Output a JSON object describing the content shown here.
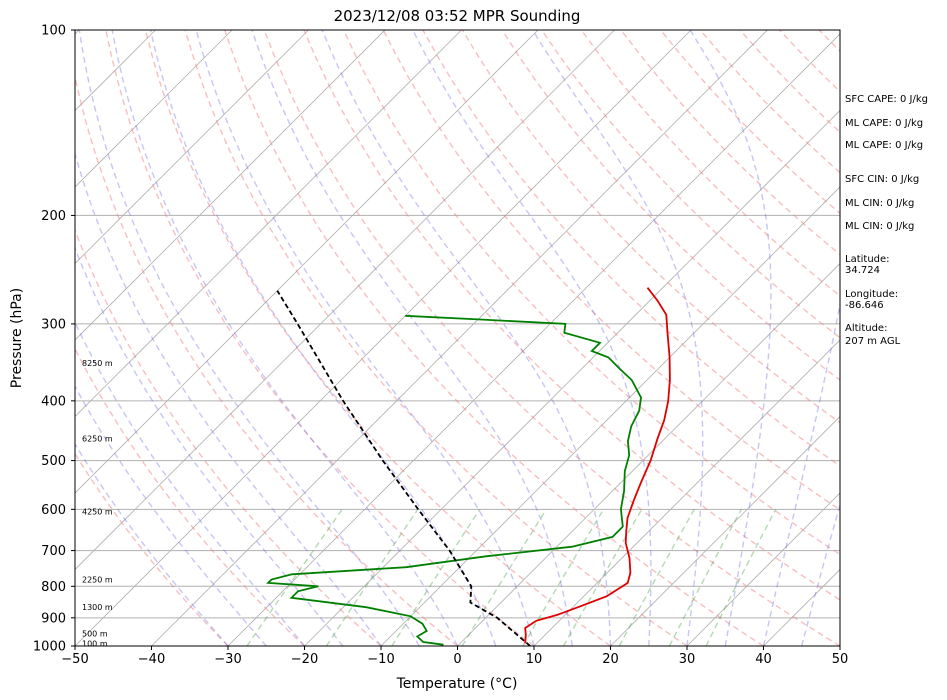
{
  "chart_data": {
    "type": "line",
    "title": "2023/12/08 03:52 MPR Sounding",
    "xlabel": "Temperature (°C)",
    "ylabel": "Pressure (hPa)",
    "xlim": [
      -50,
      50
    ],
    "ylim": [
      1000,
      100
    ],
    "y_scale": "log",
    "skew": true,
    "grid": true,
    "x_ticks": [
      -50,
      -40,
      -30,
      -20,
      -10,
      0,
      10,
      20,
      30,
      40,
      50
    ],
    "y_ticks": [
      1000,
      900,
      800,
      700,
      600,
      500,
      400,
      300,
      200,
      100
    ],
    "series": [
      {
        "key": "temperature",
        "color": "#e00000",
        "points": [
          {
            "p": 990,
            "t": 8.5
          },
          {
            "p": 960,
            "t": 7.5
          },
          {
            "p": 935,
            "t": 6.5
          },
          {
            "p": 910,
            "t": 7.0
          },
          {
            "p": 890,
            "t": 9.0
          },
          {
            "p": 860,
            "t": 11.0
          },
          {
            "p": 830,
            "t": 13.0
          },
          {
            "p": 790,
            "t": 14.0
          },
          {
            "p": 760,
            "t": 13.0
          },
          {
            "p": 720,
            "t": 11.0
          },
          {
            "p": 680,
            "t": 8.5
          },
          {
            "p": 650,
            "t": 7.0
          },
          {
            "p": 620,
            "t": 5.5
          },
          {
            "p": 580,
            "t": 4.0
          },
          {
            "p": 540,
            "t": 2.5
          },
          {
            "p": 500,
            "t": 1.0
          },
          {
            "p": 460,
            "t": -1.0
          },
          {
            "p": 430,
            "t": -2.5
          },
          {
            "p": 400,
            "t": -4.5
          },
          {
            "p": 370,
            "t": -7.0
          },
          {
            "p": 340,
            "t": -10.0
          },
          {
            "p": 310,
            "t": -13.5
          },
          {
            "p": 290,
            "t": -16.0
          },
          {
            "p": 275,
            "t": -19.0
          },
          {
            "p": 262,
            "t": -22.0
          }
        ]
      },
      {
        "key": "dewpoint",
        "color": "#008000",
        "points": [
          {
            "p": 995,
            "t": -2.0
          },
          {
            "p": 985,
            "t": -5.0
          },
          {
            "p": 965,
            "t": -6.5
          },
          {
            "p": 945,
            "t": -6.0
          },
          {
            "p": 920,
            "t": -7.5
          },
          {
            "p": 895,
            "t": -10.0
          },
          {
            "p": 865,
            "t": -17.0
          },
          {
            "p": 835,
            "t": -28.0
          },
          {
            "p": 815,
            "t": -28.0
          },
          {
            "p": 800,
            "t": -26.0
          },
          {
            "p": 790,
            "t": -33.0
          },
          {
            "p": 780,
            "t": -33.0
          },
          {
            "p": 765,
            "t": -31.0
          },
          {
            "p": 745,
            "t": -17.0
          },
          {
            "p": 715,
            "t": -8.0
          },
          {
            "p": 690,
            "t": 2.0
          },
          {
            "p": 665,
            "t": 6.0
          },
          {
            "p": 640,
            "t": 6.0
          },
          {
            "p": 600,
            "t": 3.5
          },
          {
            "p": 560,
            "t": 1.5
          },
          {
            "p": 520,
            "t": -1.0
          },
          {
            "p": 490,
            "t": -2.5
          },
          {
            "p": 465,
            "t": -4.5
          },
          {
            "p": 440,
            "t": -6.0
          },
          {
            "p": 415,
            "t": -7.0
          },
          {
            "p": 395,
            "t": -8.5
          },
          {
            "p": 370,
            "t": -12.0
          },
          {
            "p": 355,
            "t": -15.0
          },
          {
            "p": 340,
            "t": -18.0
          },
          {
            "p": 332,
            "t": -21.0
          },
          {
            "p": 322,
            "t": -21.0
          },
          {
            "p": 310,
            "t": -27.0
          },
          {
            "p": 300,
            "t": -28.0
          },
          {
            "p": 295,
            "t": -40.0
          },
          {
            "p": 291,
            "t": -50.0
          }
        ]
      },
      {
        "key": "parcel",
        "color": "#000000",
        "dashed": true,
        "points": [
          {
            "p": 1000,
            "t": 9.5
          },
          {
            "p": 900,
            "t": 1.5
          },
          {
            "p": 850,
            "t": -4.0
          },
          {
            "p": 800,
            "t": -6.0
          },
          {
            "p": 700,
            "t": -13.5
          },
          {
            "p": 600,
            "t": -23.0
          },
          {
            "p": 500,
            "t": -34.0
          },
          {
            "p": 400,
            "t": -47.0
          },
          {
            "p": 300,
            "t": -63.0
          },
          {
            "p": 265,
            "t": -70.0
          }
        ]
      }
    ],
    "height_labels": [
      {
        "p": 990,
        "text": "100 m"
      },
      {
        "p": 955,
        "text": "500 m"
      },
      {
        "p": 865,
        "text": "1300 m"
      },
      {
        "p": 780,
        "text": "2250 m"
      },
      {
        "p": 605,
        "text": "4250 m"
      },
      {
        "p": 460,
        "text": "6250 m"
      },
      {
        "p": 347,
        "text": "8250 m"
      }
    ]
  },
  "info_panel": {
    "sfc_cape": "SFC CAPE: 0 J/kg",
    "ml_cape_1": "ML CAPE: 0 J/kg",
    "ml_cape_2": "ML CAPE: 0 J/kg",
    "sfc_cin": "SFC CIN: 0 J/kg",
    "ml_cin_1": "ML CIN: 0 J/kg",
    "ml_cin_2": "ML CIN: 0 J/kg",
    "latitude_label": "Latitude:",
    "latitude_value": "34.724",
    "longitude_label": "Longitude:",
    "longitude_value": "-86.646",
    "altitude_label": "Altitude:",
    "altitude_value": "207 m AGL"
  }
}
